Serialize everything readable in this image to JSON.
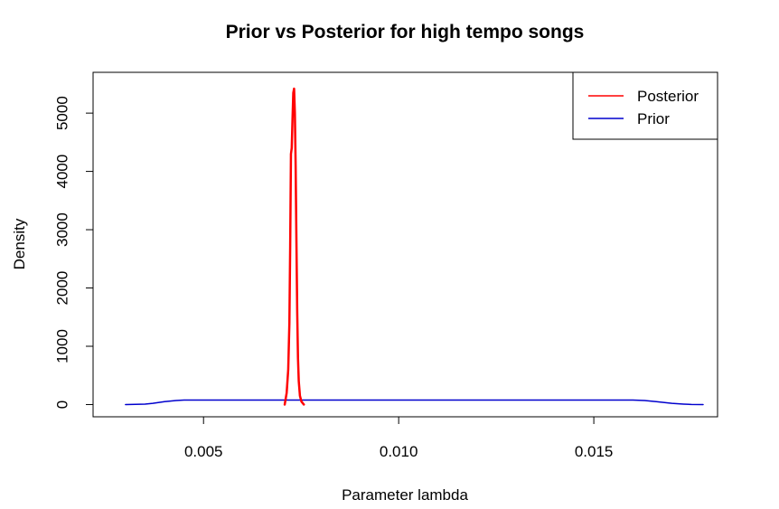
{
  "chart_data": {
    "type": "line",
    "title": "Prior vs Posterior for high tempo songs",
    "xlabel": "Parameter lambda",
    "ylabel": "Density",
    "xlim": [
      0.00217,
      0.01817
    ],
    "ylim": [
      -210,
      5700
    ],
    "x_ticks": [
      0.005,
      0.01,
      0.015
    ],
    "x_tick_labels": [
      "0.005",
      "0.010",
      "0.015"
    ],
    "y_ticks": [
      0,
      1000,
      2000,
      3000,
      4000,
      5000
    ],
    "y_tick_labels": [
      "0",
      "1000",
      "2000",
      "3000",
      "4000",
      "5000"
    ],
    "legend_position": "top-right",
    "series": [
      {
        "name": "Posterior",
        "color": "#ff0000",
        "x": [
          0.00708,
          0.00713,
          0.00717,
          0.0072,
          0.00722,
          0.00724,
          0.00726,
          0.00728,
          0.0073,
          0.00732,
          0.00734,
          0.00736,
          0.00738,
          0.0074,
          0.00742,
          0.00744,
          0.00747,
          0.00751,
          0.00757
        ],
        "values": [
          0,
          200,
          600,
          1400,
          2700,
          4300,
          4400,
          4900,
          5350,
          5420,
          5000,
          4100,
          2800,
          1600,
          800,
          400,
          150,
          50,
          0
        ]
      },
      {
        "name": "Prior",
        "color": "#0000cd",
        "x": [
          0.003,
          0.0035,
          0.0037,
          0.004,
          0.0043,
          0.0045,
          0.005,
          0.01,
          0.0155,
          0.016,
          0.0163,
          0.0166,
          0.017,
          0.0173,
          0.0175,
          0.0178
        ],
        "values": [
          0,
          8,
          20,
          50,
          70,
          77,
          77,
          77,
          77,
          77,
          70,
          50,
          20,
          8,
          2,
          0
        ]
      }
    ]
  }
}
